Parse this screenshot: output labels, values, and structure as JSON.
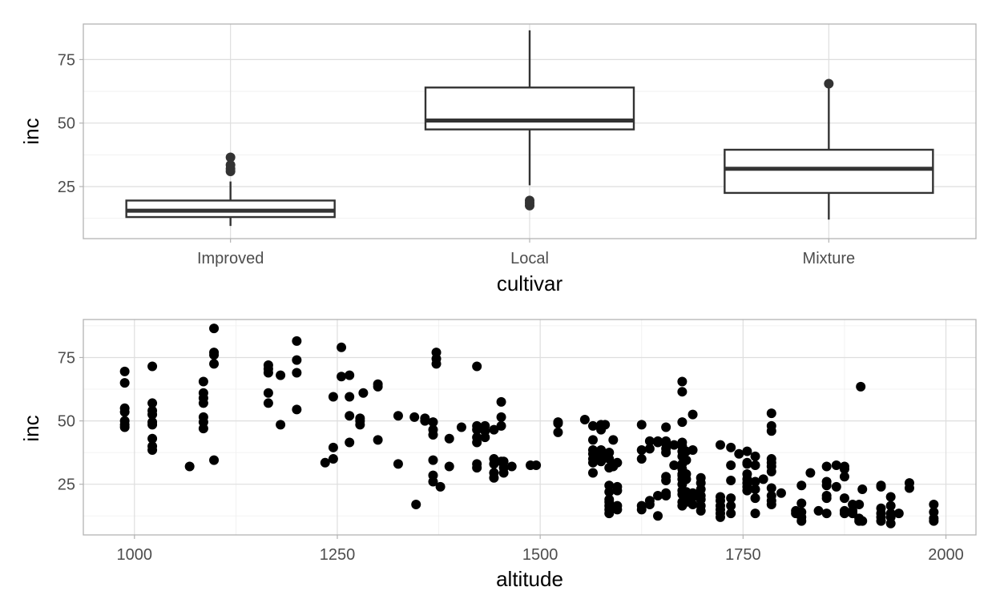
{
  "chart_data": [
    {
      "type": "box",
      "xlabel": "cultivar",
      "ylabel": "inc",
      "ylim": [
        4.5,
        89
      ],
      "y_ticks": [
        25,
        50,
        75
      ],
      "grid": true,
      "categories": [
        "Improved",
        "Local",
        "Mixture"
      ],
      "boxes": [
        {
          "category": "Improved",
          "whisker_low": 9.5,
          "q1": 13,
          "median": 15.5,
          "q3": 19.5,
          "whisker_high": 27,
          "outliers": [
            31,
            32,
            33.5,
            36.5
          ]
        },
        {
          "category": "Local",
          "whisker_low": 25.5,
          "q1": 47.5,
          "median": 51,
          "q3": 64,
          "whisker_high": 86.5,
          "outliers": [
            17.5,
            18.5,
            19.5
          ]
        },
        {
          "category": "Mixture",
          "whisker_low": 12,
          "q1": 22.5,
          "median": 32,
          "q3": 39.5,
          "whisker_high": 64,
          "outliers": [
            65.5
          ]
        }
      ]
    },
    {
      "type": "scatter",
      "xlabel": "altitude",
      "ylabel": "inc",
      "xlim": [
        937,
        2037
      ],
      "ylim": [
        5,
        90
      ],
      "x_ticks": [
        1000,
        1250,
        1500,
        1750,
        2000
      ],
      "y_ticks": [
        25,
        50,
        75
      ],
      "grid": true,
      "points": [
        [
          988,
          47.5
        ],
        [
          988,
          48.5
        ],
        [
          988,
          50
        ],
        [
          988,
          53.5
        ],
        [
          988,
          55
        ],
        [
          988,
          65
        ],
        [
          988,
          69.5
        ],
        [
          1022,
          38.5
        ],
        [
          1022,
          40
        ],
        [
          1022,
          43
        ],
        [
          1022,
          48.5
        ],
        [
          1022,
          49.5
        ],
        [
          1022,
          52.5
        ],
        [
          1022,
          54
        ],
        [
          1022,
          57
        ],
        [
          1022,
          71.5
        ],
        [
          1068,
          32
        ],
        [
          1085,
          47
        ],
        [
          1085,
          49.5
        ],
        [
          1085,
          51.5
        ],
        [
          1085,
          57
        ],
        [
          1085,
          59
        ],
        [
          1085,
          61
        ],
        [
          1085,
          65.5
        ],
        [
          1098,
          34.5
        ],
        [
          1098,
          72.5
        ],
        [
          1098,
          76
        ],
        [
          1098,
          77
        ],
        [
          1098,
          86.5
        ],
        [
          1165,
          57
        ],
        [
          1165,
          61
        ],
        [
          1165,
          69
        ],
        [
          1165,
          70.5
        ],
        [
          1165,
          72
        ],
        [
          1180,
          48.5
        ],
        [
          1180,
          68
        ],
        [
          1200,
          54.5
        ],
        [
          1200,
          69
        ],
        [
          1200,
          74
        ],
        [
          1200,
          81.5
        ],
        [
          1235,
          33.5
        ],
        [
          1245,
          35
        ],
        [
          1245,
          39.5
        ],
        [
          1245,
          59.5
        ],
        [
          1255,
          67.5
        ],
        [
          1255,
          79
        ],
        [
          1265,
          41.5
        ],
        [
          1265,
          52
        ],
        [
          1265,
          59.5
        ],
        [
          1265,
          68
        ],
        [
          1278,
          48.5
        ],
        [
          1278,
          50
        ],
        [
          1278,
          51
        ],
        [
          1282,
          61
        ],
        [
          1300,
          42.5
        ],
        [
          1300,
          63.5
        ],
        [
          1300,
          64.5
        ],
        [
          1325,
          33
        ],
        [
          1325,
          52
        ],
        [
          1345,
          51.5
        ],
        [
          1347,
          17
        ],
        [
          1358,
          50
        ],
        [
          1358,
          51
        ],
        [
          1368,
          26
        ],
        [
          1368,
          28.5
        ],
        [
          1368,
          34.5
        ],
        [
          1368,
          44.5
        ],
        [
          1368,
          46.5
        ],
        [
          1368,
          49.5
        ],
        [
          1372,
          72.5
        ],
        [
          1372,
          74.5
        ],
        [
          1372,
          77
        ],
        [
          1377,
          24
        ],
        [
          1388,
          32
        ],
        [
          1388,
          43
        ],
        [
          1403,
          47.5
        ],
        [
          1422,
          31.5
        ],
        [
          1422,
          33
        ],
        [
          1422,
          41.5
        ],
        [
          1422,
          43.5
        ],
        [
          1422,
          46.5
        ],
        [
          1422,
          48
        ],
        [
          1422,
          71.5
        ],
        [
          1432,
          43.5
        ],
        [
          1432,
          46
        ],
        [
          1432,
          48
        ],
        [
          1443,
          27.5
        ],
        [
          1443,
          29.5
        ],
        [
          1443,
          33
        ],
        [
          1443,
          35
        ],
        [
          1443,
          46.5
        ],
        [
          1452,
          34
        ],
        [
          1452,
          48
        ],
        [
          1452,
          51.5
        ],
        [
          1452,
          57.5
        ],
        [
          1455,
          29.5
        ],
        [
          1455,
          31.5
        ],
        [
          1455,
          34
        ],
        [
          1465,
          32
        ],
        [
          1488,
          32.5
        ],
        [
          1495,
          32.5
        ],
        [
          1522,
          45.5
        ],
        [
          1522,
          49
        ],
        [
          1522,
          49.5
        ],
        [
          1555,
          50.5
        ],
        [
          1565,
          29.5
        ],
        [
          1565,
          33.5
        ],
        [
          1565,
          35
        ],
        [
          1565,
          37
        ],
        [
          1565,
          38.5
        ],
        [
          1565,
          42.5
        ],
        [
          1565,
          48
        ],
        [
          1575,
          34
        ],
        [
          1575,
          36
        ],
        [
          1575,
          38.5
        ],
        [
          1575,
          46.5
        ],
        [
          1575,
          48.5
        ],
        [
          1580,
          48.5
        ],
        [
          1585,
          13.5
        ],
        [
          1585,
          15
        ],
        [
          1585,
          16.5
        ],
        [
          1585,
          18
        ],
        [
          1585,
          19
        ],
        [
          1585,
          22
        ],
        [
          1585,
          24.5
        ],
        [
          1585,
          31.5
        ],
        [
          1585,
          35
        ],
        [
          1585,
          37.5
        ],
        [
          1590,
          32
        ],
        [
          1590,
          42.5
        ],
        [
          1595,
          15
        ],
        [
          1595,
          16.5
        ],
        [
          1595,
          22.5
        ],
        [
          1595,
          24
        ],
        [
          1595,
          33.5
        ],
        [
          1625,
          15
        ],
        [
          1625,
          16.5
        ],
        [
          1625,
          35
        ],
        [
          1625,
          38.5
        ],
        [
          1625,
          48.5
        ],
        [
          1635,
          17
        ],
        [
          1635,
          18.5
        ],
        [
          1635,
          39
        ],
        [
          1635,
          42
        ],
        [
          1645,
          12.5
        ],
        [
          1645,
          20.5
        ],
        [
          1645,
          41.5
        ],
        [
          1645,
          42
        ],
        [
          1655,
          20.5
        ],
        [
          1655,
          21.5
        ],
        [
          1655,
          26.5
        ],
        [
          1655,
          28
        ],
        [
          1655,
          37.5
        ],
        [
          1655,
          39
        ],
        [
          1655,
          41
        ],
        [
          1655,
          42
        ],
        [
          1655,
          47.5
        ],
        [
          1665,
          32.5
        ],
        [
          1665,
          40.5
        ],
        [
          1675,
          16.5
        ],
        [
          1675,
          18
        ],
        [
          1675,
          21
        ],
        [
          1675,
          22.5
        ],
        [
          1675,
          25
        ],
        [
          1675,
          27
        ],
        [
          1675,
          28.5
        ],
        [
          1675,
          29
        ],
        [
          1675,
          31
        ],
        [
          1675,
          33
        ],
        [
          1675,
          36
        ],
        [
          1675,
          38
        ],
        [
          1675,
          40
        ],
        [
          1675,
          41.5
        ],
        [
          1675,
          49.5
        ],
        [
          1675,
          61.5
        ],
        [
          1675,
          65.5
        ],
        [
          1680,
          18
        ],
        [
          1680,
          20
        ],
        [
          1680,
          22
        ],
        [
          1680,
          27
        ],
        [
          1680,
          29
        ],
        [
          1680,
          34.5
        ],
        [
          1680,
          38
        ],
        [
          1688,
          17
        ],
        [
          1688,
          20
        ],
        [
          1688,
          21.5
        ],
        [
          1688,
          38.5
        ],
        [
          1688,
          52.5
        ],
        [
          1698,
          14.5
        ],
        [
          1698,
          16.5
        ],
        [
          1698,
          19
        ],
        [
          1698,
          20.5
        ],
        [
          1698,
          23
        ],
        [
          1698,
          25.5
        ],
        [
          1698,
          27.5
        ],
        [
          1722,
          12
        ],
        [
          1722,
          13.5
        ],
        [
          1722,
          15
        ],
        [
          1722,
          16.5
        ],
        [
          1722,
          18.5
        ],
        [
          1722,
          20
        ],
        [
          1722,
          40.5
        ],
        [
          1735,
          13.5
        ],
        [
          1735,
          16.5
        ],
        [
          1735,
          19.5
        ],
        [
          1735,
          26.5
        ],
        [
          1735,
          32.5
        ],
        [
          1735,
          39.5
        ],
        [
          1745,
          37
        ],
        [
          1755,
          22.5
        ],
        [
          1755,
          24
        ],
        [
          1755,
          25.5
        ],
        [
          1755,
          27
        ],
        [
          1755,
          29
        ],
        [
          1755,
          33
        ],
        [
          1755,
          33.5
        ],
        [
          1755,
          38
        ],
        [
          1765,
          13.5
        ],
        [
          1765,
          19.5
        ],
        [
          1765,
          23
        ],
        [
          1765,
          26
        ],
        [
          1765,
          32.5
        ],
        [
          1765,
          36
        ],
        [
          1775,
          27
        ],
        [
          1785,
          17
        ],
        [
          1785,
          18.5
        ],
        [
          1785,
          20.5
        ],
        [
          1785,
          23.5
        ],
        [
          1785,
          30
        ],
        [
          1785,
          32
        ],
        [
          1785,
          33.5
        ],
        [
          1785,
          35
        ],
        [
          1785,
          46
        ],
        [
          1785,
          48
        ],
        [
          1785,
          53
        ],
        [
          1797,
          21.5
        ],
        [
          1815,
          13.5
        ],
        [
          1815,
          14.5
        ],
        [
          1822,
          10.5
        ],
        [
          1822,
          12
        ],
        [
          1822,
          14
        ],
        [
          1822,
          17.5
        ],
        [
          1822,
          24.5
        ],
        [
          1833,
          29.5
        ],
        [
          1843,
          14.5
        ],
        [
          1853,
          13.5
        ],
        [
          1853,
          19.5
        ],
        [
          1853,
          20.5
        ],
        [
          1853,
          24.5
        ],
        [
          1853,
          26
        ],
        [
          1853,
          32
        ],
        [
          1865,
          24
        ],
        [
          1865,
          32.5
        ],
        [
          1875,
          13.5
        ],
        [
          1875,
          14.5
        ],
        [
          1875,
          19.5
        ],
        [
          1875,
          28
        ],
        [
          1875,
          31
        ],
        [
          1875,
          32
        ],
        [
          1885,
          13.5
        ],
        [
          1885,
          14.5
        ],
        [
          1885,
          17
        ],
        [
          1893,
          10.5
        ],
        [
          1893,
          11.5
        ],
        [
          1893,
          17
        ],
        [
          1895,
          63.5
        ],
        [
          1897,
          10.5
        ],
        [
          1897,
          23
        ],
        [
          1920,
          10.5
        ],
        [
          1920,
          12
        ],
        [
          1920,
          13.5
        ],
        [
          1920,
          15.5
        ],
        [
          1920,
          24
        ],
        [
          1920,
          24.5
        ],
        [
          1932,
          9.5
        ],
        [
          1932,
          12
        ],
        [
          1932,
          13.5
        ],
        [
          1932,
          16.5
        ],
        [
          1932,
          20
        ],
        [
          1942,
          13.5
        ],
        [
          1955,
          23.5
        ],
        [
          1955,
          25.5
        ],
        [
          1985,
          10.5
        ],
        [
          1985,
          11.5
        ],
        [
          1985,
          14
        ],
        [
          1985,
          17
        ]
      ]
    }
  ]
}
